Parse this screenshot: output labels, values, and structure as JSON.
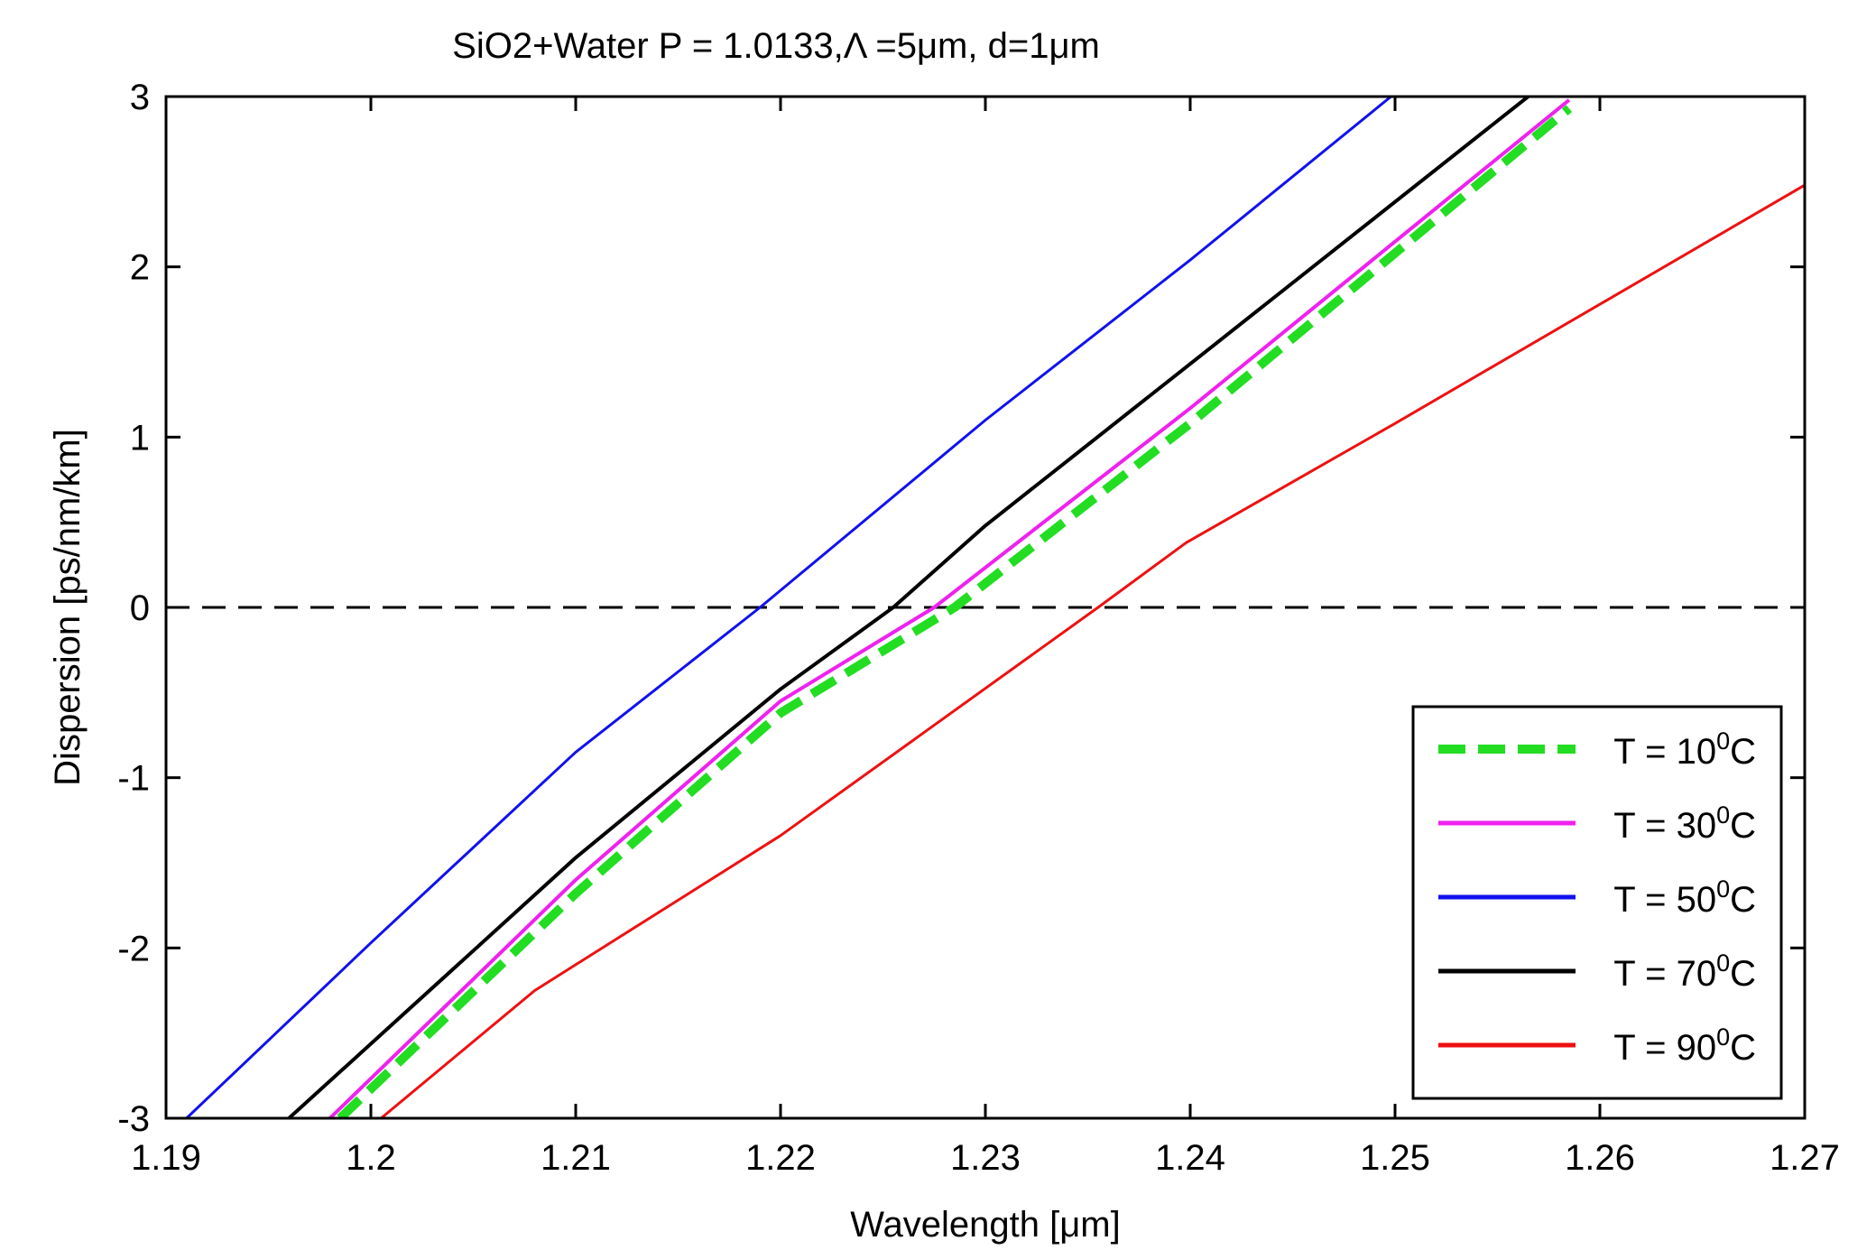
{
  "chart_data": {
    "type": "line",
    "title": "SiO2+Water P = 1.0133,Λ =5μm, d=1μm",
    "xlabel": "Wavelength [μm]",
    "ylabel": "Dispersion [ps/nm/km]",
    "xlim": [
      1.19,
      1.27
    ],
    "ylim": [
      -3,
      3
    ],
    "xticks": [
      1.19,
      1.2,
      1.21,
      1.22,
      1.23,
      1.24,
      1.25,
      1.26,
      1.27
    ],
    "xtick_labels": [
      "1.19",
      "1.2",
      "1.21",
      "1.22",
      "1.23",
      "1.24",
      "1.25",
      "1.26",
      "1.27"
    ],
    "yticks": [
      -3,
      -2,
      -1,
      0,
      1,
      2,
      3
    ],
    "ytick_labels": [
      "-3",
      "-2",
      "-1",
      "0",
      "1",
      "2",
      "3"
    ],
    "grid": false,
    "legend_position": "bottom-right",
    "reference_line": {
      "y": 0,
      "style": "dashed",
      "color": "#000000"
    },
    "series": [
      {
        "name": "T = 10",
        "unit_sup": "0",
        "unit": "C",
        "color": "#22dd22",
        "style": "dashed",
        "width": 10,
        "x": [
          1.1985,
          1.21,
          1.22,
          1.2285,
          1.24,
          1.2585
        ],
        "y": [
          -3.0,
          -1.68,
          -0.62,
          0.0,
          1.08,
          2.93
        ]
      },
      {
        "name": "T = 30",
        "unit_sup": "0",
        "unit": "C",
        "color": "#ee22ee",
        "style": "solid",
        "width": 4,
        "x": [
          1.198,
          1.21,
          1.22,
          1.2275,
          1.24,
          1.2585
        ],
        "y": [
          -3.0,
          -1.6,
          -0.55,
          0.0,
          1.17,
          2.98
        ]
      },
      {
        "name": "T = 50",
        "unit_sup": "0",
        "unit": "C",
        "color": "#1111ee",
        "style": "solid",
        "width": 3,
        "x": [
          1.191,
          1.2,
          1.21,
          1.219,
          1.23,
          1.24,
          1.2498
        ],
        "y": [
          -3.0,
          -1.97,
          -0.85,
          0.0,
          1.1,
          2.04,
          3.0
        ]
      },
      {
        "name": "T = 70",
        "unit_sup": "0",
        "unit": "C",
        "color": "#000000",
        "style": "solid",
        "width": 4,
        "x": [
          1.196,
          1.21,
          1.22,
          1.2255,
          1.23,
          1.24,
          1.2565
        ],
        "y": [
          -3.0,
          -1.47,
          -0.48,
          0.0,
          0.48,
          1.43,
          3.0
        ]
      },
      {
        "name": "T = 90",
        "unit_sup": "0",
        "unit": "C",
        "color": "#ee1111",
        "style": "solid",
        "width": 3,
        "x": [
          1.2005,
          1.208,
          1.22,
          1.2355,
          1.2398,
          1.25,
          1.27
        ],
        "y": [
          -3.0,
          -2.25,
          -1.34,
          0.0,
          0.38,
          1.08,
          2.48
        ]
      }
    ]
  }
}
